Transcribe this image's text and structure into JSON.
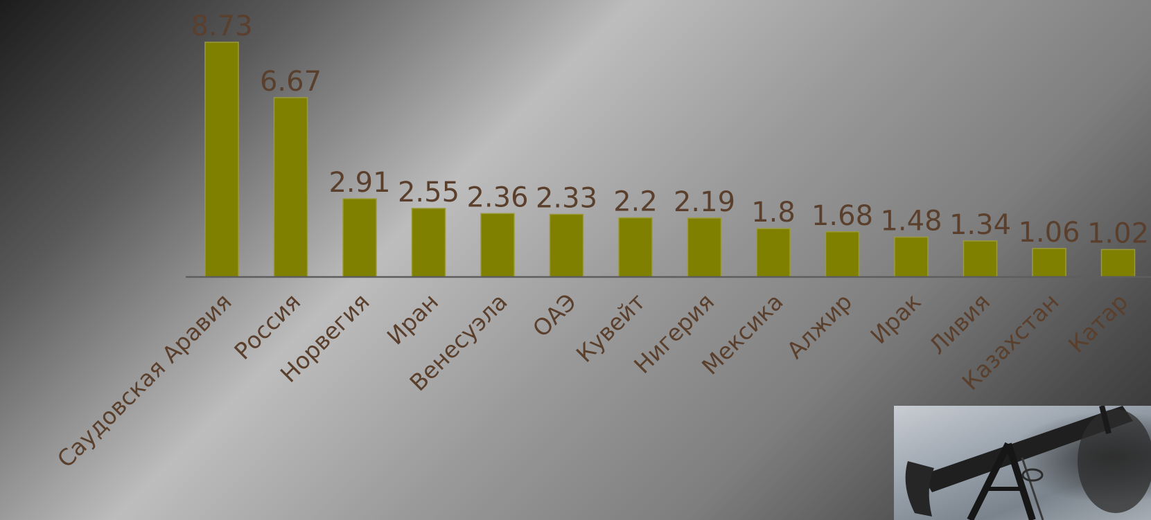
{
  "chart_data": {
    "type": "bar",
    "categories": [
      "Саудовская Аравия",
      "Россия",
      "Норвегия",
      "Иран",
      "Венесуэла",
      "ОАЭ",
      "Кувейт",
      "Нигерия",
      "Мексика",
      "Алжир",
      "Ирак",
      "Ливия",
      "Казахстан",
      "Катар"
    ],
    "values": [
      8.73,
      6.67,
      2.91,
      2.55,
      2.36,
      2.33,
      2.2,
      2.19,
      1.8,
      1.68,
      1.48,
      1.34,
      1.06,
      1.02
    ],
    "value_labels": [
      "8.73",
      "6.67",
      "2.91",
      "2.55",
      "2.36",
      "2.33",
      "2.2",
      "2.19",
      "1.8",
      "1.68",
      "1.48",
      "1.34",
      "1.06",
      "1.02"
    ],
    "title": "",
    "xlabel": "",
    "ylabel": "",
    "ylim": [
      0,
      8.73
    ],
    "grid": false,
    "legend": "none",
    "colors": {
      "bar": "#7f7f00",
      "label": "#5a3f2c",
      "axis": "#5e5e5e"
    }
  },
  "photo": {
    "icon": "oil-pump-jack-photo"
  }
}
